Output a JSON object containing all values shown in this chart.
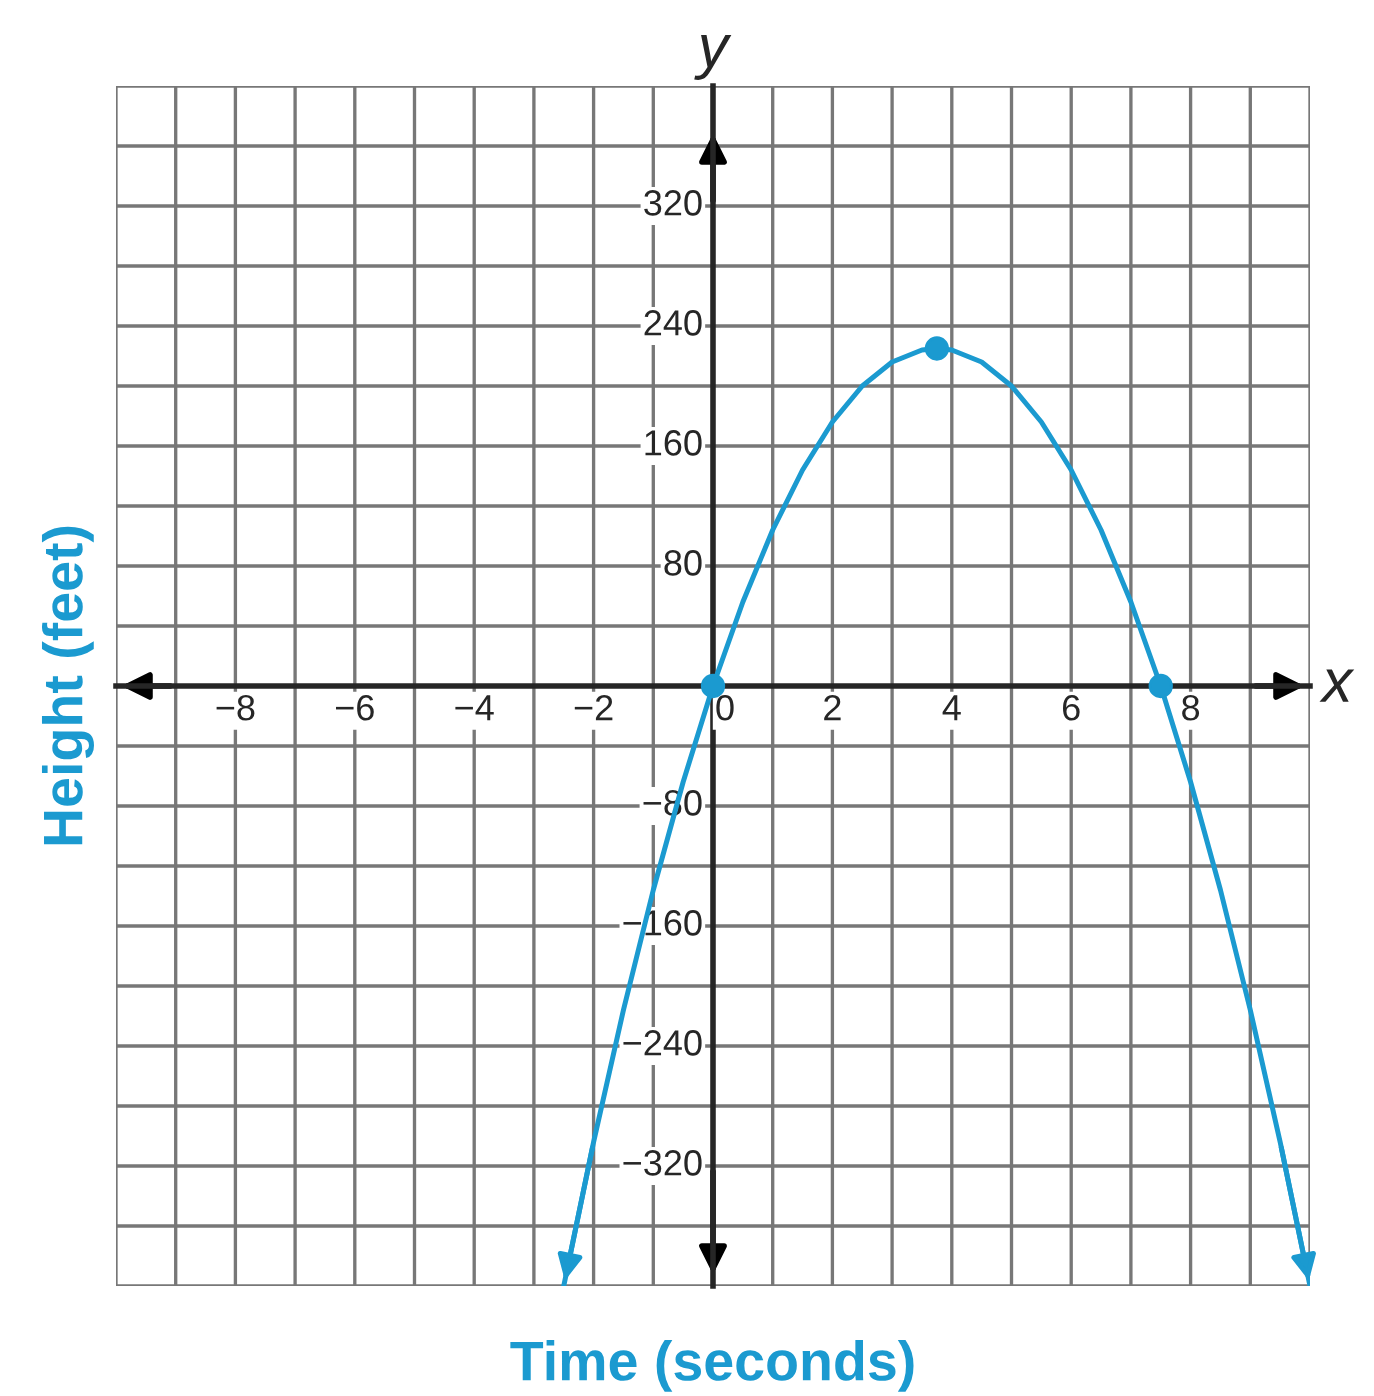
{
  "chart_data": {
    "type": "line",
    "xlabel": "Time (seconds)",
    "ylabel": "Height (feet)",
    "annotations": [
      "x",
      "y"
    ],
    "series": [
      {
        "color": "#1b9ad0",
        "marker": "none",
        "x": [
          -2.5,
          -2,
          -1.5,
          -1,
          -0.5,
          0,
          0.5,
          1,
          1.5,
          2,
          2.5,
          3,
          3.5,
          3.75,
          4,
          4.5,
          5,
          5.5,
          6,
          6.5,
          7,
          7.5,
          8,
          8.5,
          9,
          9.5,
          10
        ],
        "values": [
          -400,
          -304,
          -216,
          -136,
          -64,
          0,
          56,
          104,
          144,
          176,
          200,
          216,
          224,
          225,
          224,
          216,
          200,
          176,
          144,
          104,
          56,
          0,
          -64,
          -136,
          -216,
          -304,
          -400
        ]
      },
      {
        "type": "scatter",
        "color": "#1b9ad0",
        "marker": "circle",
        "x": [
          0,
          3.75,
          7.5
        ],
        "values": [
          0,
          225,
          0
        ]
      }
    ],
    "xlim": [
      -10,
      10
    ],
    "ylim": [
      -400,
      400
    ],
    "xticks": [
      {
        "value": -10,
        "label": null
      },
      {
        "value": -9,
        "label": null
      },
      {
        "value": -8,
        "label": "−8"
      },
      {
        "value": -7,
        "label": null
      },
      {
        "value": -6,
        "label": "−6"
      },
      {
        "value": -5,
        "label": null
      },
      {
        "value": -4,
        "label": "−4"
      },
      {
        "value": -3,
        "label": null
      },
      {
        "value": -2,
        "label": "−2"
      },
      {
        "value": -1,
        "label": null
      },
      0,
      {
        "value": 1,
        "label": null
      },
      2,
      {
        "value": 3,
        "label": null
      },
      4,
      {
        "value": 5,
        "label": null
      },
      6,
      {
        "value": 7,
        "label": null
      },
      8,
      {
        "value": 9,
        "label": null
      },
      {
        "value": 10,
        "label": null
      }
    ],
    "yticks": [
      {
        "value": -400,
        "label": null
      },
      {
        "value": -360,
        "label": null
      },
      {
        "value": -320,
        "label": "−320"
      },
      {
        "value": -280,
        "label": null
      },
      {
        "value": -240,
        "label": "−240"
      },
      {
        "value": -200,
        "label": null
      },
      {
        "value": -160,
        "label": "−160"
      },
      {
        "value": -120,
        "label": null
      },
      {
        "value": -80,
        "label": "−80"
      },
      {
        "value": -40,
        "label": null
      },
      {
        "value": 0,
        "label": null
      },
      {
        "value": 40,
        "label": null
      },
      80,
      {
        "value": 120,
        "label": null
      },
      160,
      {
        "value": 200,
        "label": null
      },
      240,
      {
        "value": 280,
        "label": null
      },
      320,
      {
        "value": 360,
        "label": null
      },
      {
        "value": 400,
        "label": null
      }
    ],
    "grid": true
  }
}
